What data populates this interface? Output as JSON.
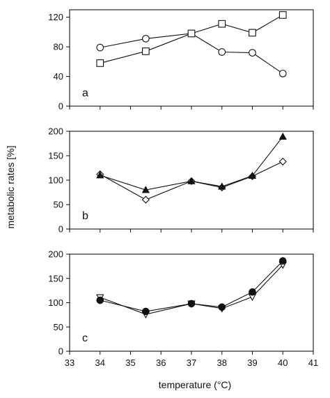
{
  "chart_data": [
    {
      "type": "line",
      "panel_label": "a",
      "x": [
        34,
        35.5,
        37,
        38,
        39,
        40
      ],
      "xlim": [
        33,
        41
      ],
      "ylim": [
        0,
        130
      ],
      "yticks": [
        0,
        40,
        80,
        120
      ],
      "series": [
        {
          "marker": "circle-open",
          "values": [
            79,
            91,
            98,
            73,
            72,
            44
          ]
        },
        {
          "marker": "square-open",
          "values": [
            58,
            74,
            98,
            111,
            99,
            123
          ]
        }
      ]
    },
    {
      "type": "line",
      "panel_label": "b",
      "x": [
        34,
        35.5,
        37,
        38,
        39,
        40
      ],
      "xlim": [
        33,
        41
      ],
      "ylim": [
        0,
        200
      ],
      "yticks": [
        0,
        50,
        100,
        150,
        200
      ],
      "series": [
        {
          "marker": "diamond-open",
          "values": [
            112,
            60,
            98,
            85,
            108,
            138
          ]
        },
        {
          "marker": "triangle-filled",
          "values": [
            110,
            80,
            98,
            87,
            109,
            189
          ]
        }
      ]
    },
    {
      "type": "line",
      "panel_label": "c",
      "x": [
        34,
        35.5,
        37,
        38,
        39,
        40
      ],
      "xlim": [
        33,
        41
      ],
      "ylim": [
        0,
        200
      ],
      "yticks": [
        0,
        50,
        100,
        150,
        200
      ],
      "xticks": [
        33,
        34,
        35,
        36,
        37,
        38,
        39,
        40,
        41
      ],
      "series": [
        {
          "marker": "triangle-down-open",
          "values": [
            111,
            76,
            98,
            88,
            112,
            178
          ]
        },
        {
          "marker": "circle-filled",
          "values": [
            105,
            82,
            98,
            91,
            122,
            186
          ]
        }
      ]
    }
  ],
  "ylabel": "metabolic rates [%]",
  "xlabel": "temperature (°C)"
}
